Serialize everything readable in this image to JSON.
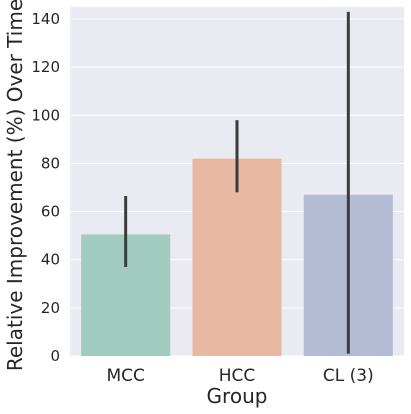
{
  "chart_data": {
    "type": "bar",
    "title": "",
    "xlabel": "Group",
    "ylabel": "Relative Improvement (%) Over Time",
    "categories": [
      "MCC",
      "HCC",
      "CL (3)"
    ],
    "values": [
      50.5,
      82,
      67
    ],
    "error_bars": [
      [
        37,
        66.5
      ],
      [
        68,
        98
      ],
      [
        1,
        143
      ]
    ],
    "ylim": [
      0,
      145
    ],
    "yticks": [
      "0",
      "20",
      "40",
      "60",
      "80",
      "100",
      "120",
      "140"
    ],
    "ytick_values": [
      0,
      20,
      40,
      60,
      80,
      100,
      120,
      140
    ],
    "grid": true,
    "legend": "none",
    "colors": [
      "#a1cbbf",
      "#e9b8a2",
      "#b3bcd4"
    ],
    "background": "#eaeaf2",
    "error_color": "#3c3c3c"
  }
}
